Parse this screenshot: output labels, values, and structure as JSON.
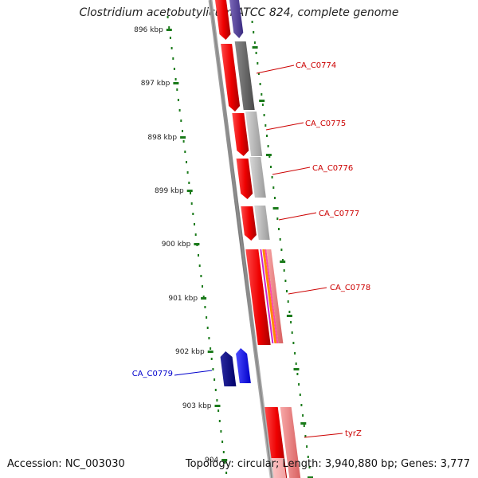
{
  "title": "Clostridium acetobutylicum ATCC 824, complete genome",
  "footer": {
    "accession": "Accession: NC_003030",
    "topology": "Topology: circular; Length: 3,940,880 bp; Genes: 3,777"
  },
  "ruler": {
    "kbp_labels": [
      "896 kbp",
      "897 kbp",
      "898 kbp",
      "899 kbp",
      "900 kbp",
      "901 kbp",
      "902 kbp",
      "903 kbp",
      "904"
    ]
  },
  "colors": {
    "forward_cds": "#ff0000",
    "reverse_cds": "#0000cc",
    "backbone": "#777777",
    "ruler_ticks": "#1a7a1a",
    "label_forward": "#cc0000",
    "label_reverse": "#0000cc"
  },
  "gene_labels": [
    {
      "name": "CA_C0774",
      "strand": "forward"
    },
    {
      "name": "CA_C0775",
      "strand": "forward"
    },
    {
      "name": "CA_C0776",
      "strand": "forward"
    },
    {
      "name": "CA_C0777",
      "strand": "forward"
    },
    {
      "name": "CA_C0778",
      "strand": "forward"
    },
    {
      "name": "CA_C0779",
      "strand": "reverse"
    },
    {
      "name": "tyrZ",
      "strand": "forward"
    }
  ]
}
